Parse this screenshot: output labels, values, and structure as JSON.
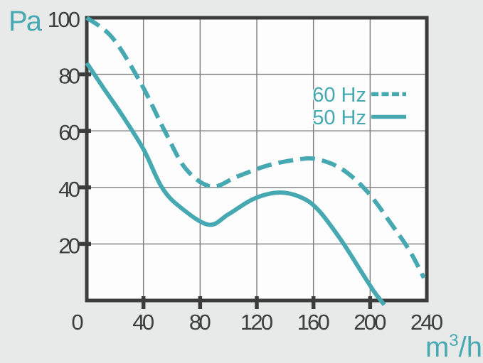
{
  "units": {
    "pressure": "Pa",
    "flow_base": "m",
    "flow_sup": "3",
    "flow_rest": "/h"
  },
  "legend": {
    "items": [
      {
        "label": "60 Hz",
        "style": "dashed"
      },
      {
        "label": "50 Hz",
        "style": "solid"
      }
    ]
  },
  "colors": {
    "accent_teal": "#46a9b2",
    "axis_dark": "#3c3c3c",
    "grid_gray": "#7d7d7d",
    "canvas_background": "#e8e9e9",
    "plot_background": "#fdfdfd"
  },
  "chart_data": {
    "type": "line",
    "xlabel": "m3/h",
    "ylabel": "Pa",
    "xlim": [
      0,
      240
    ],
    "ylim": [
      0,
      100
    ],
    "x_ticks": [
      0,
      40,
      80,
      120,
      160,
      200,
      240
    ],
    "y_ticks": [
      20,
      40,
      60,
      80,
      100
    ],
    "grid": true,
    "legend_position": "inside-upper-right",
    "series": [
      {
        "name": "60 Hz",
        "line_style": "dashed",
        "points": [
          [
            0,
            100
          ],
          [
            18,
            93
          ],
          [
            38,
            77
          ],
          [
            55,
            60
          ],
          [
            70,
            46.5
          ],
          [
            88,
            40.3
          ],
          [
            106,
            43.8
          ],
          [
            128,
            47.8
          ],
          [
            148,
            49.8
          ],
          [
            162,
            50
          ],
          [
            180,
            46.5
          ],
          [
            198,
            38.5
          ],
          [
            215,
            27
          ],
          [
            228,
            17.5
          ],
          [
            238,
            8
          ]
        ]
      },
      {
        "name": "50 Hz",
        "line_style": "solid",
        "points": [
          [
            0,
            84
          ],
          [
            12,
            75
          ],
          [
            25,
            65.5
          ],
          [
            40,
            53.5
          ],
          [
            53,
            40
          ],
          [
            66,
            33
          ],
          [
            86,
            26.8
          ],
          [
            100,
            30.5
          ],
          [
            118,
            36
          ],
          [
            136,
            38.2
          ],
          [
            152,
            36.3
          ],
          [
            164,
            31.7
          ],
          [
            180,
            21
          ],
          [
            194,
            10
          ],
          [
            203,
            3
          ],
          [
            210,
            -1.5
          ]
        ]
      }
    ]
  }
}
